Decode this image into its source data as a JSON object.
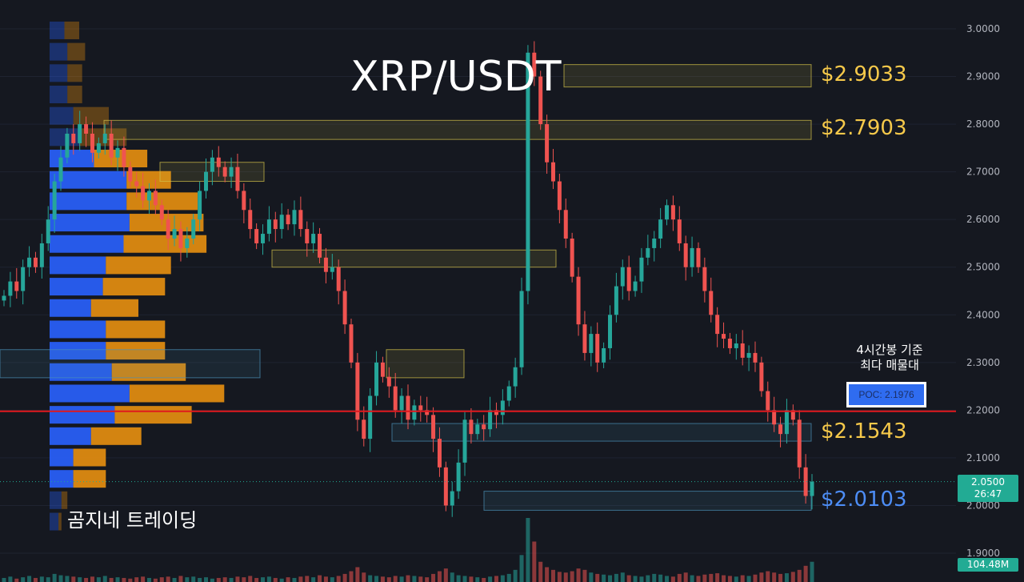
{
  "chart": {
    "title": "XRP/USDT",
    "watermark": "곰지네 트레이딩",
    "poc_note_line1": "4시간봉 기준",
    "poc_note_line2": "최다 매물대",
    "poc_label": "POC: 2.1976",
    "current_price": "2.0500",
    "countdown": "26:47",
    "volume_label": "104.48M"
  },
  "levels": [
    {
      "label": "$2.9033",
      "price": 2.9033,
      "color": "#f6c94a"
    },
    {
      "label": "$2.7903",
      "price": 2.7903,
      "color": "#f6c94a"
    },
    {
      "label": "$2.1543",
      "price": 2.1543,
      "color": "#f6c94a"
    },
    {
      "label": "$2.0103",
      "price": 2.0103,
      "color": "#4d8df5"
    }
  ],
  "colors": {
    "bull": "#26a69a",
    "bear": "#ef5350",
    "poc": "#e0181e",
    "vp_up": "#2962ff",
    "vp_down": "#e8900f",
    "background": "#151820"
  },
  "chart_data": {
    "type": "candlestick",
    "ylim": [
      1.9,
      3.0
    ],
    "y_ticks": [
      "3.0000",
      "2.9000",
      "2.8000",
      "2.7000",
      "2.6000",
      "2.5000",
      "2.4000",
      "2.3000",
      "2.2000",
      "2.1000",
      "2.0000",
      "1.9000"
    ],
    "poc": 2.1976,
    "closes": [
      2.44,
      2.47,
      2.45,
      2.5,
      2.52,
      2.5,
      2.55,
      2.6,
      2.68,
      2.73,
      2.78,
      2.76,
      2.8,
      2.78,
      2.74,
      2.76,
      2.78,
      2.73,
      2.75,
      2.71,
      2.68,
      2.67,
      2.64,
      2.66,
      2.63,
      2.6,
      2.56,
      2.58,
      2.54,
      2.56,
      2.6,
      2.66,
      2.7,
      2.73,
      2.71,
      2.69,
      2.71,
      2.66,
      2.62,
      2.58,
      2.55,
      2.57,
      2.6,
      2.58,
      2.61,
      2.59,
      2.62,
      2.58,
      2.55,
      2.57,
      2.52,
      2.49,
      2.5,
      2.45,
      2.38,
      2.3,
      2.18,
      2.14,
      2.23,
      2.3,
      2.27,
      2.25,
      2.2,
      2.23,
      2.18,
      2.21,
      2.2,
      2.19,
      2.14,
      2.08,
      2.0,
      2.03,
      2.09,
      2.18,
      2.15,
      2.17,
      2.16,
      2.2,
      2.19,
      2.22,
      2.25,
      2.29,
      2.45,
      2.95,
      2.9,
      2.8,
      2.72,
      2.68,
      2.62,
      2.56,
      2.48,
      2.38,
      2.32,
      2.36,
      2.3,
      2.33,
      2.4,
      2.46,
      2.5,
      2.45,
      2.47,
      2.52,
      2.54,
      2.56,
      2.6,
      2.63,
      2.6,
      2.55,
      2.5,
      2.54,
      2.5,
      2.45,
      2.4,
      2.36,
      2.35,
      2.33,
      2.34,
      2.31,
      2.32,
      2.3,
      2.24,
      2.2,
      2.17,
      2.15,
      2.2,
      2.18,
      2.08,
      2.02,
      2.05
    ],
    "volumes": [
      6,
      8,
      5,
      7,
      9,
      6,
      8,
      7,
      12,
      10,
      9,
      8,
      7,
      6,
      8,
      7,
      9,
      6,
      7,
      6,
      5,
      7,
      8,
      6,
      5,
      7,
      8,
      6,
      9,
      7,
      8,
      6,
      7,
      5,
      6,
      7,
      6,
      8,
      7,
      9,
      6,
      7,
      8,
      6,
      5,
      7,
      6,
      8,
      9,
      7,
      10,
      8,
      7,
      9,
      12,
      16,
      22,
      14,
      10,
      9,
      8,
      7,
      9,
      8,
      10,
      9,
      8,
      7,
      12,
      16,
      20,
      14,
      10,
      9,
      8,
      7,
      6,
      8,
      9,
      10,
      12,
      18,
      40,
      95,
      60,
      30,
      22,
      18,
      15,
      14,
      16,
      20,
      18,
      14,
      12,
      11,
      10,
      12,
      14,
      10,
      9,
      8,
      10,
      12,
      11,
      9,
      8,
      12,
      14,
      10,
      9,
      11,
      12,
      13,
      10,
      9,
      8,
      10,
      9,
      11,
      14,
      16,
      14,
      12,
      13,
      15,
      18,
      24,
      30
    ]
  },
  "volume_profile": [
    {
      "price": 2.9967,
      "up": 0.5,
      "down": 0.5
    },
    {
      "price": 2.9519,
      "up": 0.6,
      "down": 0.6
    },
    {
      "price": 2.9071,
      "up": 0.6,
      "down": 0.5
    },
    {
      "price": 2.8623,
      "up": 0.6,
      "down": 0.5
    },
    {
      "price": 2.8175,
      "up": 0.8,
      "down": 1.2
    },
    {
      "price": 2.7727,
      "up": 1.0,
      "down": 1.6
    },
    {
      "price": 2.7279,
      "up": 1.5,
      "down": 1.8
    },
    {
      "price": 2.6831,
      "up": 2.6,
      "down": 1.5
    },
    {
      "price": 2.6383,
      "up": 2.6,
      "down": 2.4
    },
    {
      "price": 2.5935,
      "up": 2.7,
      "down": 2.5
    },
    {
      "price": 2.5487,
      "up": 2.5,
      "down": 2.8
    },
    {
      "price": 2.5039,
      "up": 1.9,
      "down": 2.2
    },
    {
      "price": 2.4591,
      "up": 1.8,
      "down": 2.1
    },
    {
      "price": 2.4143,
      "up": 1.4,
      "down": 1.6
    },
    {
      "price": 2.3695,
      "up": 1.9,
      "down": 2.0
    },
    {
      "price": 2.3247,
      "up": 1.9,
      "down": 2.0
    },
    {
      "price": 2.2799,
      "up": 2.1,
      "down": 2.5
    },
    {
      "price": 2.2351,
      "up": 2.7,
      "down": 3.2
    },
    {
      "price": 2.1903,
      "up": 2.2,
      "down": 2.6
    },
    {
      "price": 2.1455,
      "up": 1.4,
      "down": 1.7
    },
    {
      "price": 2.1007,
      "up": 0.8,
      "down": 1.1
    },
    {
      "price": 2.0559,
      "up": 0.8,
      "down": 1.1
    },
    {
      "price": 2.0111,
      "up": 0.4,
      "down": 0.2
    },
    {
      "price": 1.9663,
      "up": 0.3,
      "down": 0.1
    }
  ]
}
